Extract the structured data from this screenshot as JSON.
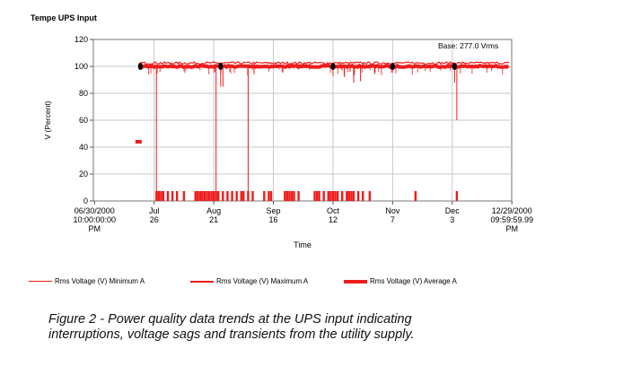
{
  "chart_data": {
    "type": "line",
    "title": "Tempe UPS Input",
    "ylabel": "V (Percent)",
    "xlabel": "Time",
    "base_label": "Base: 277.0 Vrms",
    "ylim": [
      0,
      120
    ],
    "yticks": [
      0,
      20,
      40,
      60,
      80,
      100,
      120
    ],
    "xlim": [
      "2000-06-30 00:00:00",
      "2000-12-29 09:59:59"
    ],
    "xtick_labels": [
      {
        "date": "2000-06-30",
        "lines": [
          "06/30/2000",
          "10:00:00:00",
          "PM"
        ]
      },
      {
        "date": "2000-07-26",
        "lines": [
          "Jul",
          "26"
        ]
      },
      {
        "date": "2000-08-21",
        "lines": [
          "Aug",
          "21"
        ]
      },
      {
        "date": "2000-09-16",
        "lines": [
          "Sep",
          "16"
        ]
      },
      {
        "date": "2000-10-12",
        "lines": [
          "Oct",
          "12"
        ]
      },
      {
        "date": "2000-11-07",
        "lines": [
          "Nov",
          "7"
        ]
      },
      {
        "date": "2000-12-03",
        "lines": [
          "Dec",
          "3"
        ]
      },
      {
        "date": "2000-12-29",
        "lines": [
          "12/29/2000",
          "09:59:59.99",
          "PM"
        ]
      }
    ],
    "grid": true,
    "colors": {
      "series": "#ee1c1c",
      "markers": "#000000",
      "grid": "#c8c8c8"
    },
    "series": [
      {
        "name": "Rms Voltage (V) Minimum A",
        "style": "thin",
        "sags": [
          {
            "date": "2000-07-27",
            "value": 0
          },
          {
            "date": "2000-08-22",
            "value": 0
          },
          {
            "date": "2000-08-24",
            "value": 85
          },
          {
            "date": "2000-08-25",
            "value": 85
          },
          {
            "date": "2000-09-05",
            "value": 0
          },
          {
            "date": "2000-10-12",
            "value": 93
          },
          {
            "date": "2000-10-17",
            "value": 92
          },
          {
            "date": "2000-10-21",
            "value": 88
          },
          {
            "date": "2000-10-24",
            "value": 89
          },
          {
            "date": "2000-12-04",
            "value": 88
          },
          {
            "date": "2000-12-05",
            "value": 60
          }
        ],
        "isolated_points": [
          {
            "date": "2000-07-19",
            "value": 44
          }
        ]
      },
      {
        "name": "Rms Voltage (V) Maximum A",
        "style": "medium",
        "typical": 101
      },
      {
        "name": "Rms Voltage (V) Average A",
        "style": "thick",
        "typical": 100
      }
    ],
    "zero_events": [
      "2000-07-27",
      "2000-07-28",
      "2000-07-29",
      "2000-07-30",
      "2000-08-01",
      "2000-08-03",
      "2000-08-05",
      "2000-08-08",
      "2000-08-13",
      "2000-08-14",
      "2000-08-15",
      "2000-08-16",
      "2000-08-17",
      "2000-08-18",
      "2000-08-19",
      "2000-08-20",
      "2000-08-21",
      "2000-08-22",
      "2000-08-23",
      "2000-08-25",
      "2000-08-27",
      "2000-08-29",
      "2000-08-31",
      "2000-09-02",
      "2000-09-03",
      "2000-09-05",
      "2000-09-07",
      "2000-09-12",
      "2000-09-14",
      "2000-09-15",
      "2000-09-21",
      "2000-09-22",
      "2000-09-23",
      "2000-09-24",
      "2000-09-25",
      "2000-09-27",
      "2000-10-04",
      "2000-10-05",
      "2000-10-06",
      "2000-10-08",
      "2000-10-10",
      "2000-10-11",
      "2000-10-12",
      "2000-10-13",
      "2000-10-14",
      "2000-10-16",
      "2000-10-18",
      "2000-10-19",
      "2000-10-20",
      "2000-10-21",
      "2000-10-23",
      "2000-10-25",
      "2000-10-28",
      "2000-11-17",
      "2000-12-05"
    ],
    "markers": [
      "2000-07-20",
      "2000-08-24",
      "2000-10-12",
      "2000-11-07",
      "2000-12-04"
    ]
  },
  "caption": {
    "line1": "Figure 2 - Power quality data trends at the UPS input indicating",
    "line2": "interruptions, voltage sags and transients from the utility supply."
  }
}
